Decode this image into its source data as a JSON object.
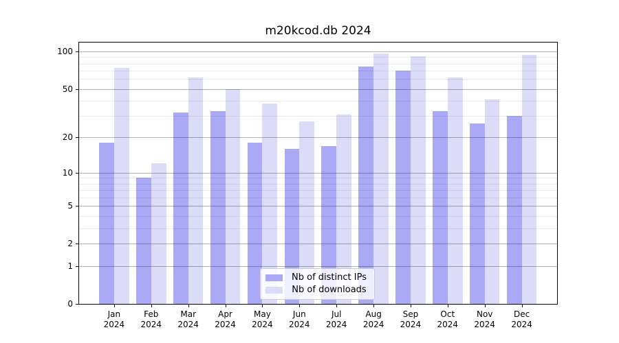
{
  "title": "m20kcod.db 2024",
  "chart_data": {
    "type": "bar",
    "title": "m20kcod.db 2024",
    "categories": [
      "Jan 2024",
      "Feb 2024",
      "Mar 2024",
      "Apr 2024",
      "May 2024",
      "Jun 2024",
      "Jul 2024",
      "Aug 2024",
      "Sep 2024",
      "Oct 2024",
      "Nov 2024",
      "Dec 2024"
    ],
    "series": [
      {
        "name": "Nb of distinct IPs",
        "color": "#a9a9f6",
        "values": [
          18,
          9,
          32,
          33,
          18,
          16,
          17,
          76,
          70,
          33,
          26,
          30
        ]
      },
      {
        "name": "Nb of downloads",
        "color": "#dcdcf8",
        "values": [
          74,
          12,
          62,
          50,
          38,
          27,
          31,
          96,
          91,
          62,
          41,
          94
        ]
      }
    ],
    "xlabel": "",
    "ylabel": "",
    "y_scale": "log10(1+value)",
    "y_ticks": [
      0,
      1,
      2,
      5,
      10,
      20,
      50,
      100
    ],
    "y_minor_ticks": [
      3,
      4,
      6,
      7,
      8,
      9,
      30,
      40,
      60,
      70,
      80,
      90
    ],
    "ylim": [
      0,
      118
    ],
    "grid": "on",
    "legend_position": "lower center",
    "colors": {
      "bar_dark": "#a9a9f6",
      "bar_light": "#dcdcf8",
      "major_grid": "#b3b3b3",
      "minor_grid": "#e8e8e8",
      "spine": "#000000",
      "legend_border": "#cccccc"
    }
  }
}
